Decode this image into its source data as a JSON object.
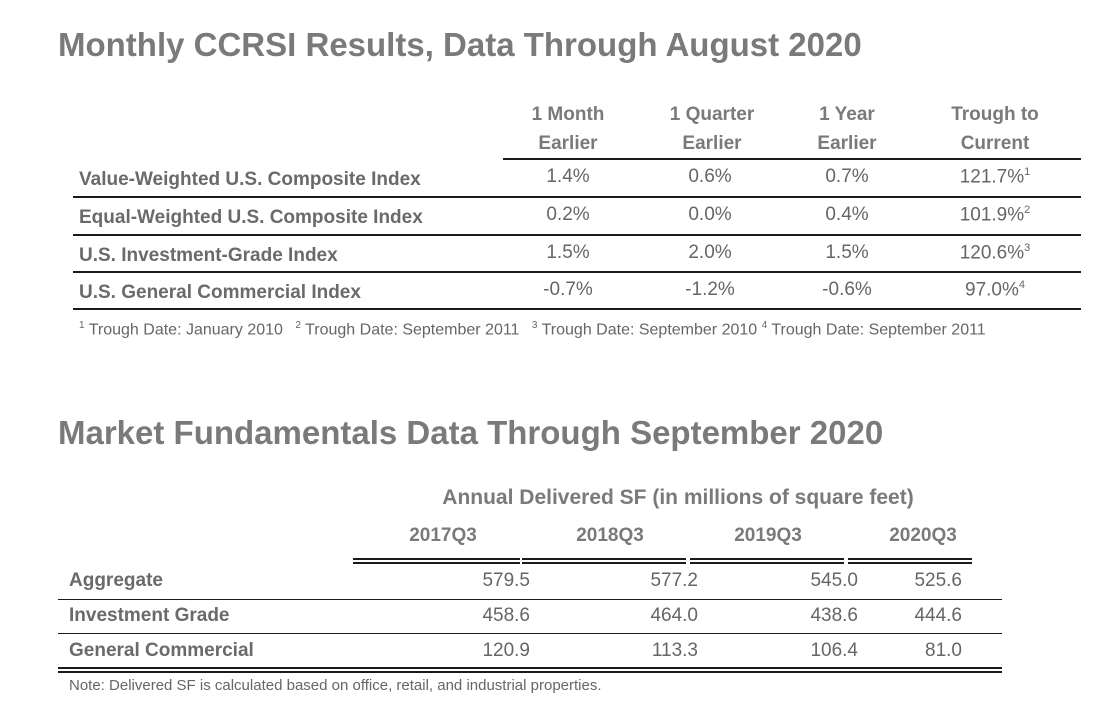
{
  "ccrsi": {
    "title": "Monthly CCRSI Results, Data Through August 2020",
    "headers": [
      [
        "1 Month",
        "Earlier"
      ],
      [
        "1 Quarter",
        "Earlier"
      ],
      [
        "1 Year",
        "Earlier"
      ],
      [
        "Trough to",
        "Current"
      ]
    ],
    "rows": [
      {
        "label": "Value-Weighted U.S. Composite Index",
        "values": [
          "1.4%",
          "0.6%",
          "0.7%",
          "121.7%"
        ],
        "note": "1"
      },
      {
        "label": "Equal-Weighted U.S. Composite Index",
        "values": [
          "0.2%",
          "0.0%",
          "0.4%",
          "101.9%"
        ],
        "note": "2"
      },
      {
        "label": "U.S. Investment-Grade Index",
        "values": [
          "1.5%",
          "2.0%",
          "1.5%",
          "120.6%"
        ],
        "note": "3"
      },
      {
        "label": "U.S. General Commercial Index",
        "values": [
          "-0.7%",
          "-1.2%",
          "-0.6%",
          "97.0%"
        ],
        "note": "4"
      }
    ],
    "footnotes": [
      {
        "mark": "1",
        "text": "Trough Date: January 2010"
      },
      {
        "mark": "2",
        "text": "Trough Date: September 2011"
      },
      {
        "mark": "3",
        "text": "Trough Date: September 2010"
      },
      {
        "mark": "4",
        "text": "Trough Date: September 2011"
      }
    ]
  },
  "fundamentals": {
    "title": "Market Fundamentals Data Through September 2020",
    "span_header": "Annual Delivered SF (in millions of square feet)",
    "columns": [
      "2017Q3",
      "2018Q3",
      "2019Q3",
      "2020Q3"
    ],
    "rows": [
      {
        "label": "Aggregate",
        "values": [
          "579.5",
          "577.2",
          "545.0",
          "525.6"
        ]
      },
      {
        "label": "Investment Grade",
        "values": [
          "458.6",
          "464.0",
          "438.6",
          "444.6"
        ]
      },
      {
        "label": "General Commercial",
        "values": [
          "120.9",
          "113.3",
          "106.4",
          "81.0"
        ]
      }
    ],
    "note": "Note: Delivered SF is calculated based on office, retail, and industrial properties."
  }
}
